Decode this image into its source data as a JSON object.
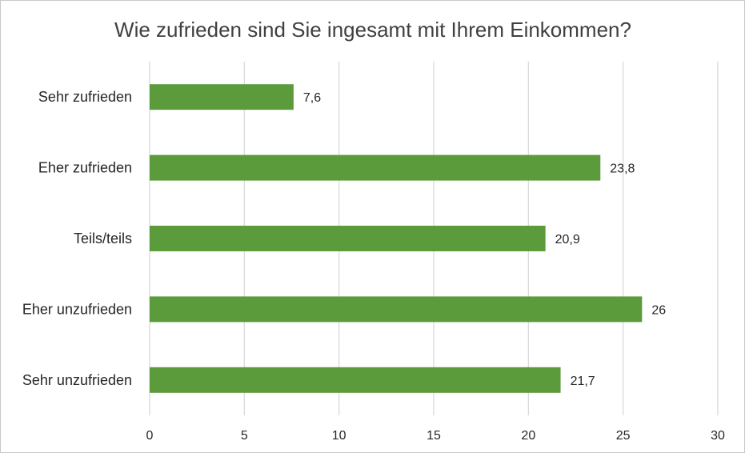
{
  "chart_data": {
    "type": "bar",
    "orientation": "horizontal",
    "title": "Wie zufrieden sind Sie ingesamt mit Ihrem Einkommen?",
    "categories": [
      "Sehr zufrieden",
      "Eher zufrieden",
      "Teils/teils",
      "Eher unzufrieden",
      "Sehr unzufrieden"
    ],
    "values": [
      7.6,
      23.8,
      20.9,
      26,
      21.7
    ],
    "value_labels": [
      "7,6",
      "23,8",
      "20,9",
      "26",
      "21,7"
    ],
    "xlim": [
      0,
      30
    ],
    "xticks": [
      "0",
      "5",
      "10",
      "15",
      "20",
      "25",
      "30"
    ],
    "grid": true,
    "legend": "none",
    "bar_color": "#5b9b3b"
  }
}
